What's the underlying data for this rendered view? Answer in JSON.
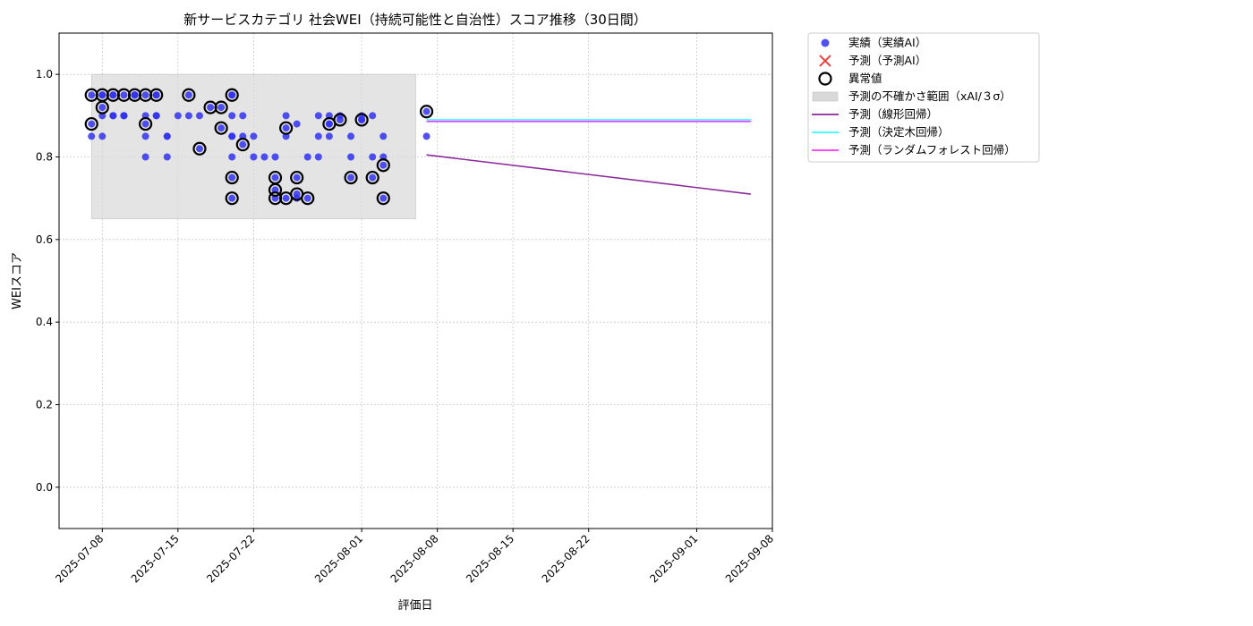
{
  "chart_data": {
    "type": "scatter",
    "title": "新サービスカテゴリ 社会WEI（持続可能性と自治性）スコア推移（30日間）",
    "xlabel": "評価日",
    "ylabel": "WEIスコア",
    "xlim": [
      "2025-07-04",
      "2025-09-08"
    ],
    "ylim": [
      -0.1,
      1.1
    ],
    "yticks": [
      0.0,
      0.2,
      0.4,
      0.6,
      0.8,
      1.0
    ],
    "ytick_labels": [
      "0.0",
      "0.2",
      "0.4",
      "0.6",
      "0.8",
      "1.0"
    ],
    "xticks": [
      "2025-07-08",
      "2025-07-15",
      "2025-07-22",
      "2025-08-01",
      "2025-08-08",
      "2025-08-15",
      "2025-08-22",
      "2025-09-01",
      "2025-09-08"
    ],
    "grid": true,
    "legend_position": "outside right, top",
    "legend": [
      {
        "label": "実績（実績AI）",
        "kind": "dot",
        "color": "#3333ee"
      },
      {
        "label": "予測（予測AI）",
        "kind": "cross",
        "color": "#ee4444"
      },
      {
        "label": "異常値",
        "kind": "ring",
        "color": "#000000"
      },
      {
        "label": "予測の不確かさ範囲（xAI/３σ）",
        "kind": "band",
        "color": "#d9d9d9"
      },
      {
        "label": "予測（線形回帰）",
        "kind": "line",
        "color": "#8b2a9b"
      },
      {
        "label": "予測（決定木回帰）",
        "kind": "line",
        "color": "#33ffff"
      },
      {
        "label": "予測（ランダムフォレスト回帰）",
        "kind": "line",
        "color": "#ff33ff"
      }
    ],
    "uncertainty_band": {
      "x": [
        "2025-07-07",
        "2025-08-06"
      ],
      "y": [
        0.65,
        1.0
      ]
    },
    "series": [
      {
        "name": "実績（実績AI）",
        "kind": "scatter",
        "color": "#3333ee",
        "points": [
          [
            "2025-07-07",
            0.88
          ],
          [
            "2025-07-07",
            0.85
          ],
          [
            "2025-07-07",
            0.95
          ],
          [
            "2025-07-08",
            0.95
          ],
          [
            "2025-07-08",
            0.85
          ],
          [
            "2025-07-08",
            0.9
          ],
          [
            "2025-07-08",
            0.92
          ],
          [
            "2025-07-08",
            0.95
          ],
          [
            "2025-07-09",
            0.9
          ],
          [
            "2025-07-09",
            0.95
          ],
          [
            "2025-07-09",
            0.95
          ],
          [
            "2025-07-09",
            0.9
          ],
          [
            "2025-07-10",
            0.9
          ],
          [
            "2025-07-10",
            0.95
          ],
          [
            "2025-07-10",
            0.9
          ],
          [
            "2025-07-10",
            0.9
          ],
          [
            "2025-07-11",
            0.95
          ],
          [
            "2025-07-11",
            0.95
          ],
          [
            "2025-07-11",
            0.95
          ],
          [
            "2025-07-11",
            0.95
          ],
          [
            "2025-07-12",
            0.9
          ],
          [
            "2025-07-12",
            0.88
          ],
          [
            "2025-07-12",
            0.85
          ],
          [
            "2025-07-12",
            0.8
          ],
          [
            "2025-07-12",
            0.95
          ],
          [
            "2025-07-13",
            0.95
          ],
          [
            "2025-07-13",
            0.9
          ],
          [
            "2025-07-13",
            0.95
          ],
          [
            "2025-07-13",
            0.9
          ],
          [
            "2025-07-14",
            0.85
          ],
          [
            "2025-07-14",
            0.85
          ],
          [
            "2025-07-14",
            0.8
          ],
          [
            "2025-07-15",
            0.9
          ],
          [
            "2025-07-16",
            0.95
          ],
          [
            "2025-07-16",
            0.9
          ],
          [
            "2025-07-17",
            0.82
          ],
          [
            "2025-07-17",
            0.9
          ],
          [
            "2025-07-18",
            0.92
          ],
          [
            "2025-07-19",
            0.92
          ],
          [
            "2025-07-19",
            0.87
          ],
          [
            "2025-07-20",
            0.95
          ],
          [
            "2025-07-20",
            0.9
          ],
          [
            "2025-07-20",
            0.85
          ],
          [
            "2025-07-20",
            0.8
          ],
          [
            "2025-07-20",
            0.75
          ],
          [
            "2025-07-20",
            0.7
          ],
          [
            "2025-07-20",
            0.95
          ],
          [
            "2025-07-20",
            0.85
          ],
          [
            "2025-07-21",
            0.83
          ],
          [
            "2025-07-21",
            0.9
          ],
          [
            "2025-07-21",
            0.85
          ],
          [
            "2025-07-22",
            0.8
          ],
          [
            "2025-07-22",
            0.85
          ],
          [
            "2025-07-23",
            0.8
          ],
          [
            "2025-07-24",
            0.8
          ],
          [
            "2025-07-24",
            0.75
          ],
          [
            "2025-07-24",
            0.72
          ],
          [
            "2025-07-24",
            0.7
          ],
          [
            "2025-07-25",
            0.87
          ],
          [
            "2025-07-25",
            0.85
          ],
          [
            "2025-07-25",
            0.9
          ],
          [
            "2025-07-25",
            0.7
          ],
          [
            "2025-07-26",
            0.75
          ],
          [
            "2025-07-26",
            0.71
          ],
          [
            "2025-07-26",
            0.7
          ],
          [
            "2025-07-26",
            0.88
          ],
          [
            "2025-07-27",
            0.8
          ],
          [
            "2025-07-27",
            0.7
          ],
          [
            "2025-07-28",
            0.9
          ],
          [
            "2025-07-28",
            0.85
          ],
          [
            "2025-07-28",
            0.8
          ],
          [
            "2025-07-29",
            0.88
          ],
          [
            "2025-07-29",
            0.9
          ],
          [
            "2025-07-29",
            0.85
          ],
          [
            "2025-07-29",
            0.88
          ],
          [
            "2025-07-30",
            0.89
          ],
          [
            "2025-07-30",
            0.9
          ],
          [
            "2025-07-31",
            0.75
          ],
          [
            "2025-07-31",
            0.8
          ],
          [
            "2025-07-31",
            0.85
          ],
          [
            "2025-08-01",
            0.89
          ],
          [
            "2025-08-01",
            0.9
          ],
          [
            "2025-08-01",
            0.89
          ],
          [
            "2025-08-02",
            0.75
          ],
          [
            "2025-08-02",
            0.8
          ],
          [
            "2025-08-02",
            0.9
          ],
          [
            "2025-08-03",
            0.85
          ],
          [
            "2025-08-03",
            0.78
          ],
          [
            "2025-08-03",
            0.8
          ],
          [
            "2025-08-03",
            0.7
          ],
          [
            "2025-08-07",
            0.91
          ],
          [
            "2025-08-07",
            0.85
          ]
        ]
      },
      {
        "name": "異常値",
        "kind": "ring",
        "color": "#000000",
        "points": [
          [
            "2025-07-07",
            0.88
          ],
          [
            "2025-07-07",
            0.95
          ],
          [
            "2025-07-08",
            0.95
          ],
          [
            "2025-07-08",
            0.92
          ],
          [
            "2025-07-09",
            0.95
          ],
          [
            "2025-07-10",
            0.95
          ],
          [
            "2025-07-11",
            0.95
          ],
          [
            "2025-07-12",
            0.95
          ],
          [
            "2025-07-12",
            0.88
          ],
          [
            "2025-07-13",
            0.95
          ],
          [
            "2025-07-16",
            0.95
          ],
          [
            "2025-07-17",
            0.82
          ],
          [
            "2025-07-18",
            0.92
          ],
          [
            "2025-07-19",
            0.92
          ],
          [
            "2025-07-19",
            0.87
          ],
          [
            "2025-07-20",
            0.95
          ],
          [
            "2025-07-20",
            0.75
          ],
          [
            "2025-07-20",
            0.7
          ],
          [
            "2025-07-21",
            0.83
          ],
          [
            "2025-07-24",
            0.75
          ],
          [
            "2025-07-24",
            0.72
          ],
          [
            "2025-07-24",
            0.7
          ],
          [
            "2025-07-25",
            0.87
          ],
          [
            "2025-07-25",
            0.7
          ],
          [
            "2025-07-26",
            0.75
          ],
          [
            "2025-07-26",
            0.71
          ],
          [
            "2025-07-27",
            0.7
          ],
          [
            "2025-07-29",
            0.88
          ],
          [
            "2025-07-30",
            0.89
          ],
          [
            "2025-07-31",
            0.75
          ],
          [
            "2025-08-01",
            0.89
          ],
          [
            "2025-08-02",
            0.75
          ],
          [
            "2025-08-03",
            0.78
          ],
          [
            "2025-08-03",
            0.7
          ],
          [
            "2025-08-07",
            0.91
          ]
        ]
      },
      {
        "name": "予測（線形回帰）",
        "kind": "line",
        "color": "#8b2a9b",
        "points": [
          [
            "2025-08-07",
            0.805
          ],
          [
            "2025-09-06",
            0.71
          ]
        ]
      },
      {
        "name": "予測（決定木回帰）",
        "kind": "line",
        "color": "#33ffff",
        "points": [
          [
            "2025-08-07",
            0.89
          ],
          [
            "2025-09-06",
            0.89
          ]
        ]
      },
      {
        "name": "予測（ランダムフォレスト回帰）",
        "kind": "line",
        "color": "#ff33ff",
        "points": [
          [
            "2025-08-07",
            0.886
          ],
          [
            "2025-09-06",
            0.886
          ]
        ]
      }
    ]
  }
}
